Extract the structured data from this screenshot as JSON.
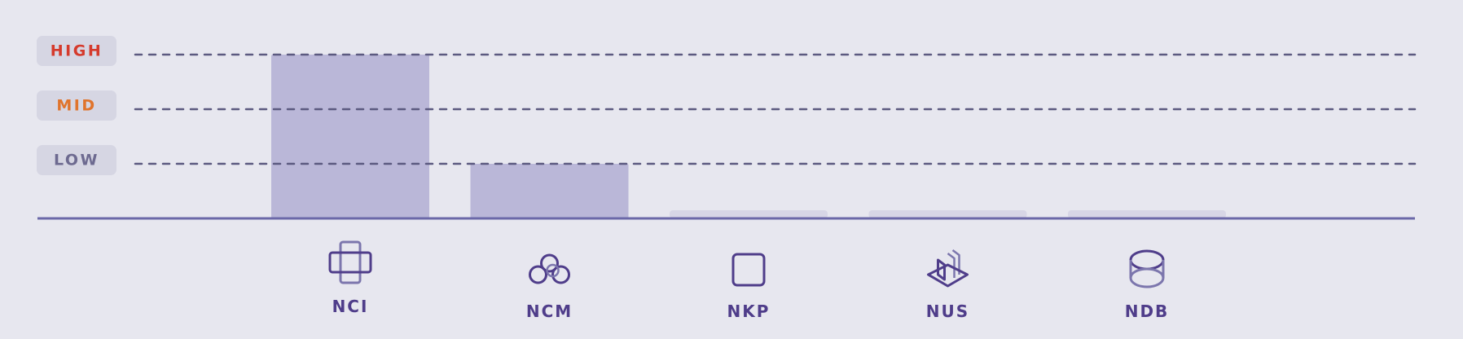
{
  "chart_data": {
    "type": "bar",
    "categories": [
      "NCI",
      "NCM",
      "NKP",
      "NUS",
      "NDB"
    ],
    "values": [
      3,
      1,
      0.15,
      0.15,
      0.15
    ],
    "ylim": [
      0,
      4
    ],
    "levels": [
      {
        "label": "HIGH",
        "value": 3,
        "color": "#d53a2c"
      },
      {
        "label": "MID",
        "value": 2,
        "color": "#e0742c"
      },
      {
        "label": "LOW",
        "value": 1,
        "color": "#6d6a90"
      }
    ],
    "icons": [
      "medical-cross-icon",
      "cloud-cluster-icon",
      "square-icon",
      "stacked-layers-icon",
      "database-icon"
    ],
    "colors": {
      "bar": "#bab7d8",
      "bar_faint": "#d7d6e6",
      "grid": "#5c5a80",
      "axis": "#6b68a8",
      "label_bg": "#d6d6e3",
      "icon": "#4f3d8a",
      "icon_light": "#7c76ad"
    },
    "grid": true
  }
}
